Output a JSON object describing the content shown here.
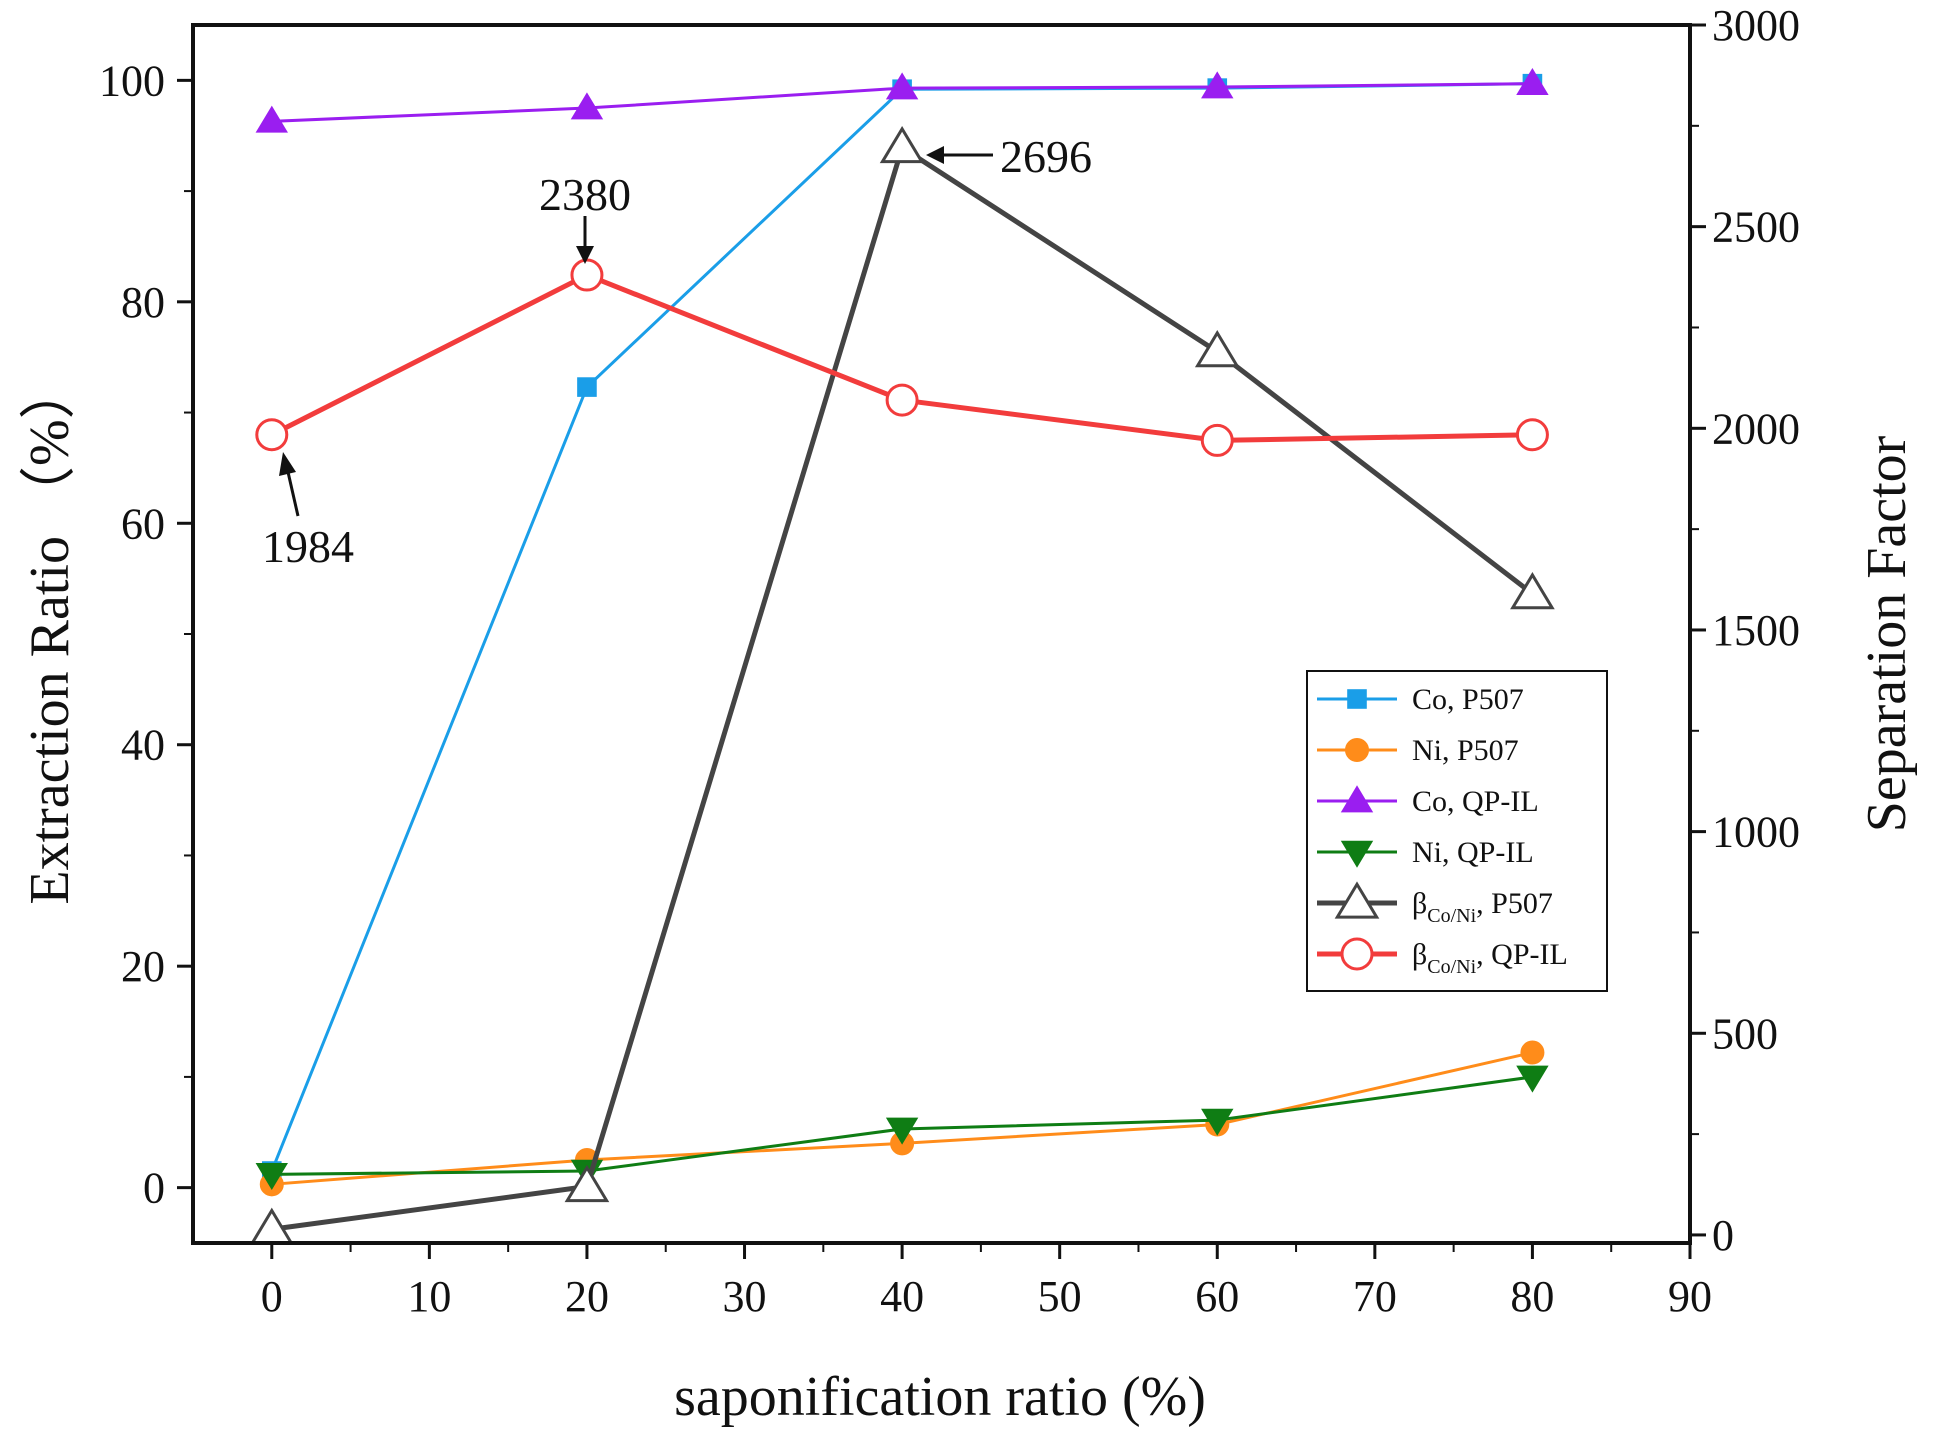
{
  "chart_data": {
    "type": "line",
    "x": [
      0,
      20,
      40,
      60,
      80
    ],
    "xlabel": "saponification ratio (%)",
    "ylabel": "Extraction Ratio （%）",
    "y2label": "Separation Factor",
    "xlim": [
      -5,
      90
    ],
    "ylim": [
      -5,
      105
    ],
    "y2lim": [
      -20,
      3000
    ],
    "xticks": [
      0,
      10,
      20,
      30,
      40,
      50,
      60,
      70,
      80,
      90
    ],
    "yticks": [
      0,
      20,
      40,
      60,
      80,
      100
    ],
    "y2ticks": [
      0,
      500,
      1000,
      1500,
      2000,
      2500,
      3000
    ],
    "series": [
      {
        "name": "Co, P507",
        "axis": "left",
        "color": "#1a9ee8",
        "marker": "square",
        "filled": true,
        "values": [
          1.5,
          72.3,
          99.2,
          99.3,
          99.7
        ]
      },
      {
        "name": "Ni, P507",
        "axis": "left",
        "color": "#ff8c1a",
        "marker": "circle",
        "filled": true,
        "values": [
          0.3,
          2.5,
          4.0,
          5.7,
          12.2
        ]
      },
      {
        "name": "Co, QP-IL",
        "axis": "left",
        "color": "#9a1ef0",
        "marker": "triangle-up",
        "filled": true,
        "values": [
          96.3,
          97.5,
          99.3,
          99.4,
          99.7
        ]
      },
      {
        "name": "Ni,  QP-IL",
        "axis": "left",
        "color": "#0f7d14",
        "marker": "triangle-down",
        "filled": true,
        "values": [
          1.2,
          1.5,
          5.3,
          6.1,
          10.0
        ]
      },
      {
        "name": "β",
        "sub": "Co/Ni",
        "suffix": ", P507",
        "axis": "right",
        "color": "#444444",
        "marker": "triangle-up",
        "filled": false,
        "values": [
          14,
          120,
          2696,
          2190,
          1590
        ]
      },
      {
        "name": "β",
        "sub": "Co/Ni",
        "suffix": ", QP-IL",
        "axis": "right",
        "color": "#f23c3c",
        "marker": "circle",
        "filled": false,
        "values": [
          1984,
          2380,
          2070,
          1970,
          1984
        ]
      }
    ],
    "annotations": [
      {
        "text": "2380",
        "x": 20,
        "y2": 2380
      },
      {
        "text": "1984",
        "x": 0,
        "y2": 1984
      },
      {
        "text": "2696",
        "x": 40,
        "y2": 2696
      }
    ],
    "legend_position": "center-right"
  }
}
